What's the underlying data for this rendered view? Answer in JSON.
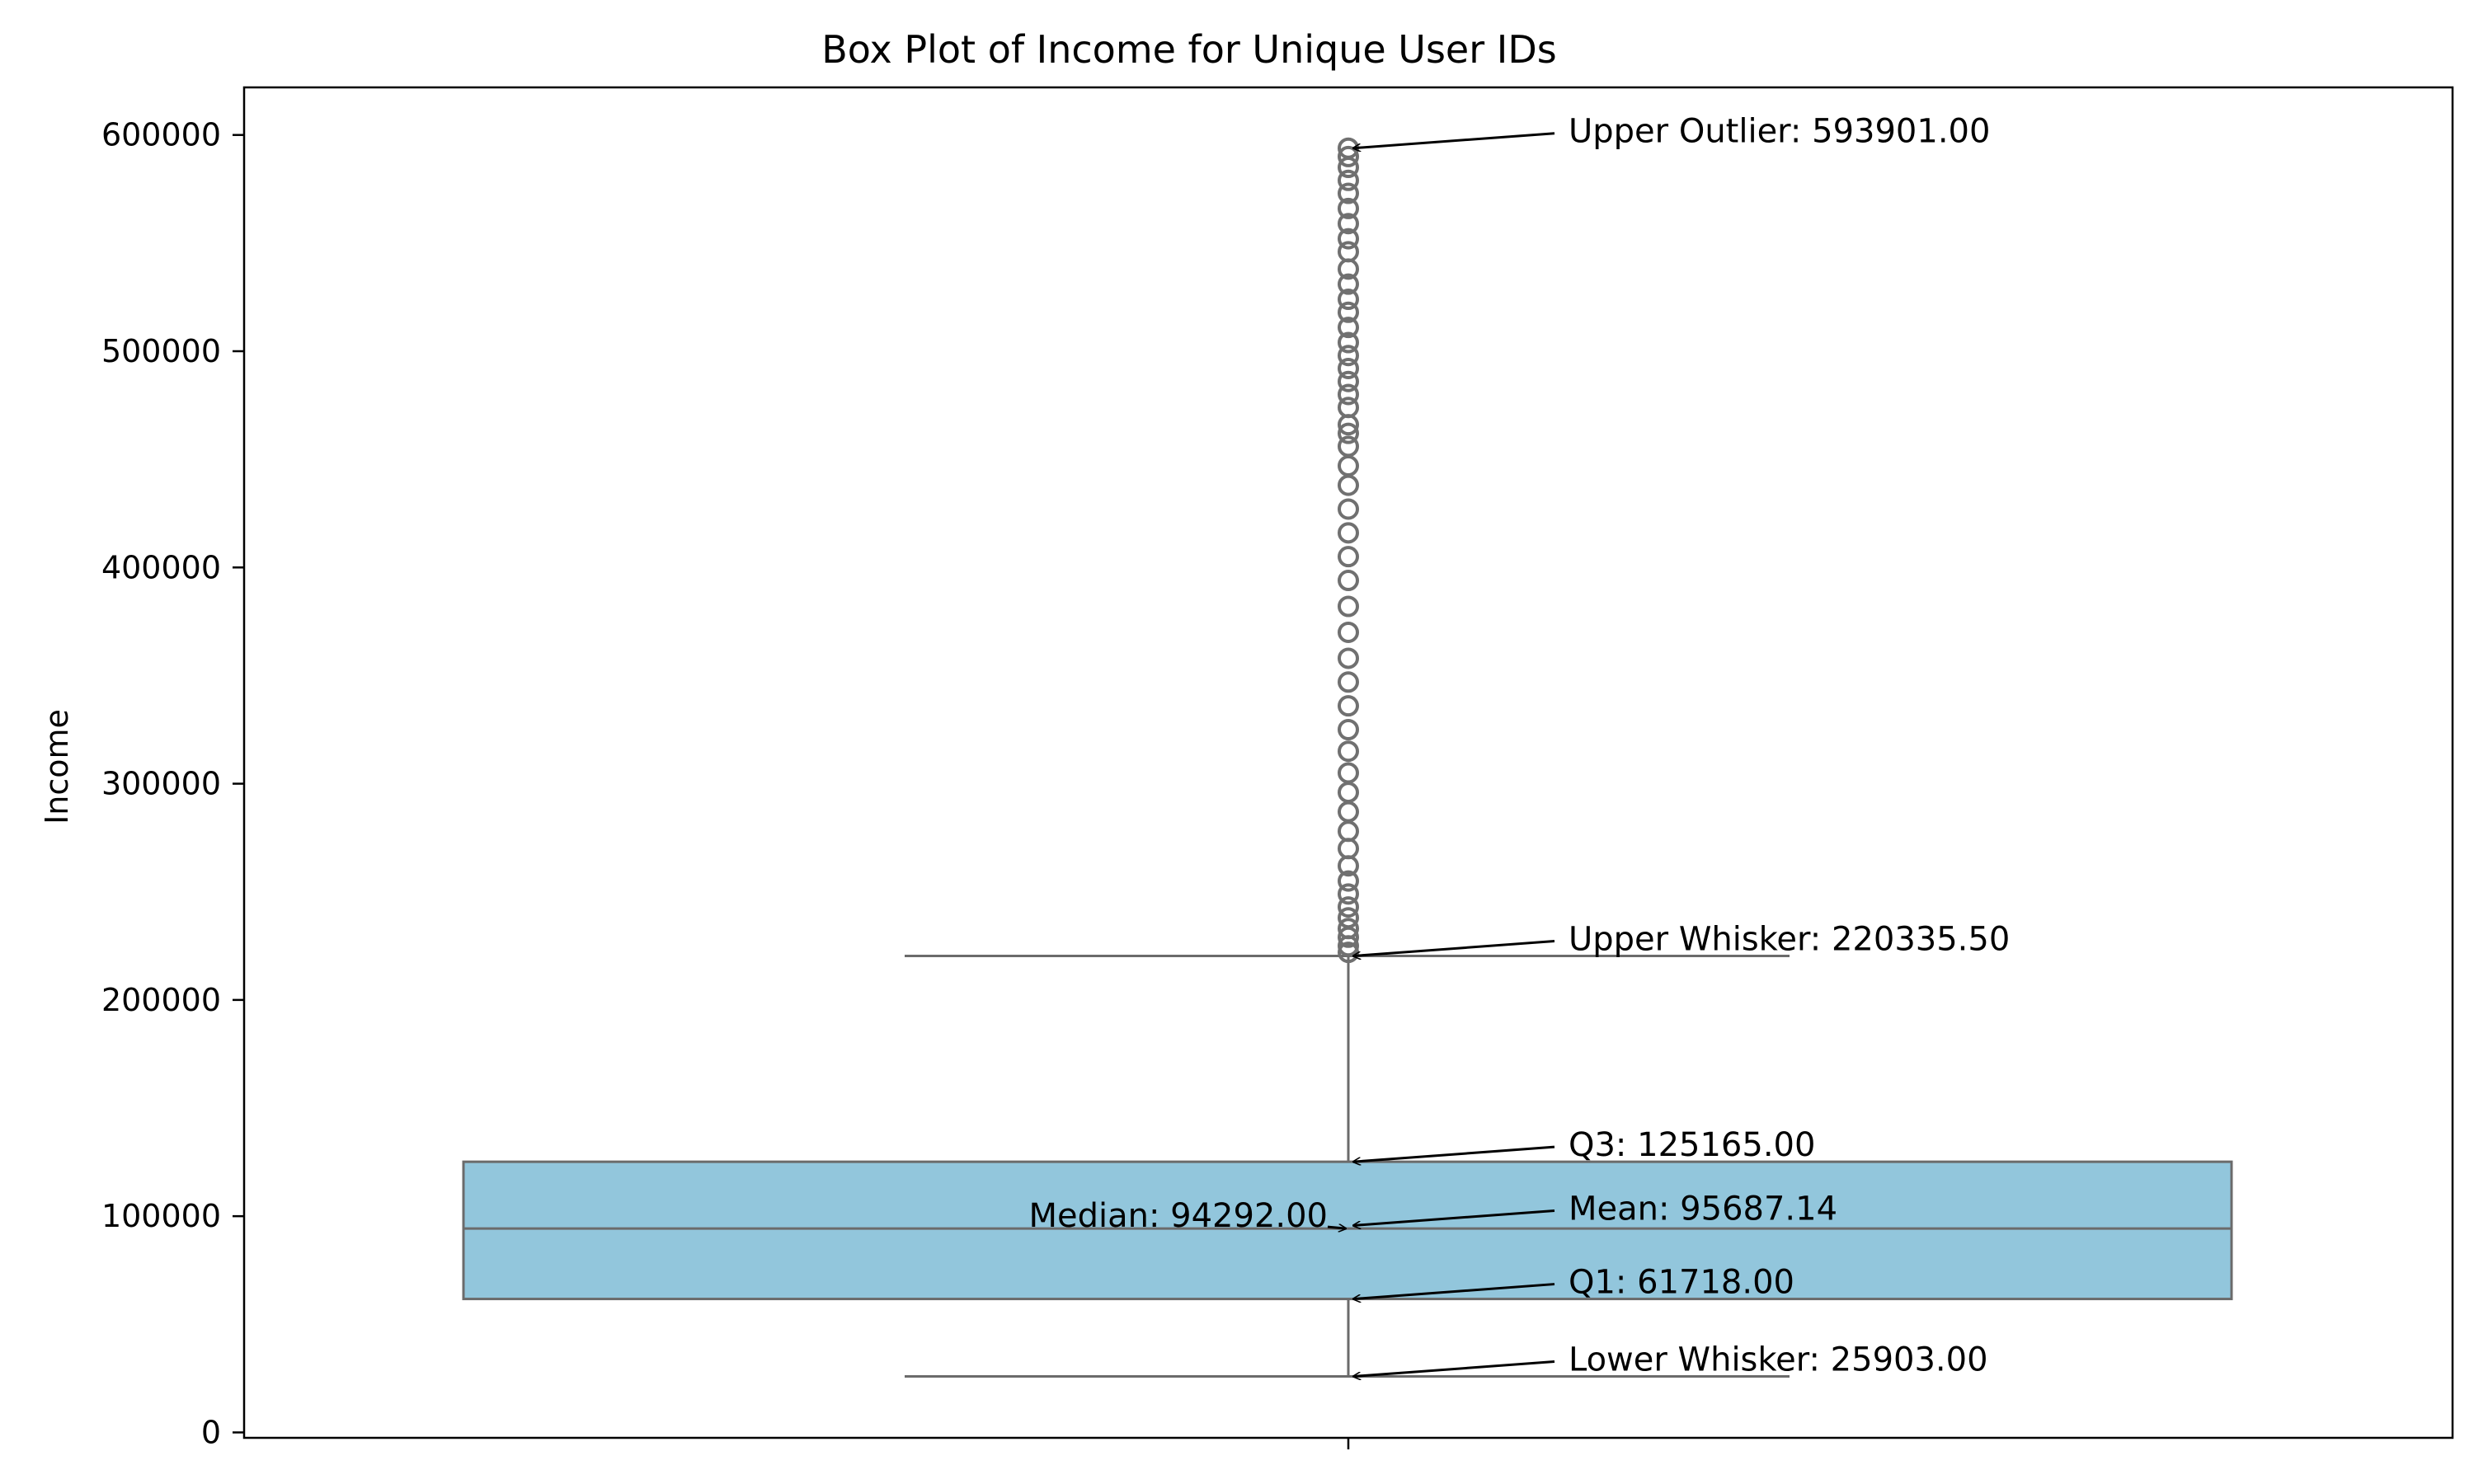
{
  "chart_data": {
    "type": "box",
    "title": "Box Plot of Income for Unique User IDs",
    "xlabel": "",
    "ylabel": "Income",
    "ylim": [
      -2500,
      622000
    ],
    "yticks": [
      0,
      100000,
      200000,
      300000,
      400000,
      500000,
      600000
    ],
    "ytick_labels": [
      "0",
      "100000",
      "200000",
      "300000",
      "400000",
      "500000",
      "600000"
    ],
    "grid": false,
    "box": {
      "lower_whisker": 25903.0,
      "q1": 61718.0,
      "median": 94292.0,
      "mean": 95687.14,
      "q3": 125165.0,
      "upper_whisker": 220335.5,
      "max_outlier": 593901.0
    },
    "outliers_approx": [
      222000,
      225000,
      229000,
      233000,
      238000,
      243000,
      249000,
      255000,
      262000,
      270000,
      278000,
      287000,
      296000,
      305000,
      315000,
      325000,
      336000,
      347000,
      358000,
      370000,
      382000,
      394000,
      405000,
      416000,
      427000,
      438000,
      447000,
      456000,
      462000,
      466000,
      474000,
      480000,
      486000,
      492000,
      498000,
      504000,
      511000,
      518000,
      524000,
      531000,
      538000,
      546000,
      552000,
      559000,
      566000,
      573000,
      579000,
      585000,
      590000,
      593901
    ],
    "annotations": [
      {
        "label": "Upper Outlier: 593901.00",
        "value": 593901.0,
        "side": "right"
      },
      {
        "label": "Upper Whisker: 220335.50",
        "value": 220335.5,
        "side": "right"
      },
      {
        "label": "Q3: 125165.00",
        "value": 125165.0,
        "side": "right"
      },
      {
        "label": "Mean: 95687.14",
        "value": 95687.14,
        "side": "right"
      },
      {
        "label": "Q1: 61718.00",
        "value": 61718.0,
        "side": "right"
      },
      {
        "label": "Lower Whisker: 25903.00",
        "value": 25903.0,
        "side": "right"
      },
      {
        "label": "Median: 94292.00",
        "value": 94292.0,
        "side": "left"
      }
    ],
    "colors": {
      "box_fill": "#92c6dc",
      "box_edge": "#6b6b6b",
      "outlier": "#707070",
      "arrow": "#000000"
    }
  }
}
